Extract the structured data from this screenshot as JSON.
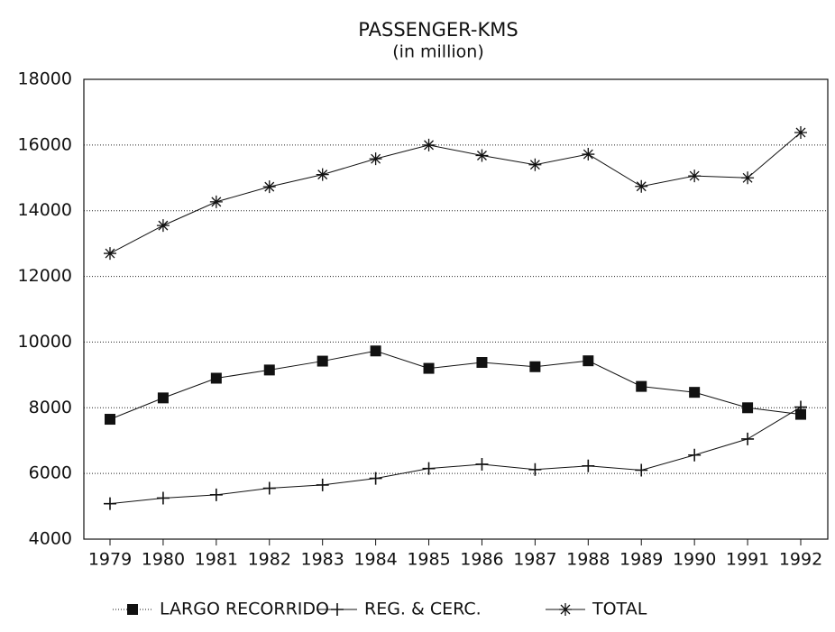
{
  "chart_data": {
    "type": "line",
    "title": "PASSENGER-KMS",
    "subtitle": "(in million)",
    "categories": [
      "1979",
      "1980",
      "1981",
      "1982",
      "1983",
      "1984",
      "1985",
      "1986",
      "1987",
      "1988",
      "1989",
      "1990",
      "1991",
      "1992"
    ],
    "series": [
      {
        "name": "LARGO RECORRIDO",
        "color": "#111111",
        "marker": "square",
        "values": [
          7650,
          8300,
          8900,
          9150,
          9420,
          9730,
          9200,
          9380,
          9250,
          9430,
          8650,
          8470,
          8000,
          7800
        ]
      },
      {
        "name": "REG. & CERC.",
        "color": "#111111",
        "marker": "plus",
        "values": [
          5080,
          5250,
          5350,
          5550,
          5650,
          5850,
          6150,
          6280,
          6120,
          6230,
          6100,
          6560,
          7050,
          8020
        ]
      },
      {
        "name": "TOTAL",
        "color": "#111111",
        "marker": "asterisk",
        "values": [
          12700,
          13550,
          14270,
          14730,
          15100,
          15580,
          16000,
          15680,
          15400,
          15720,
          14740,
          15060,
          15000,
          16380
        ]
      }
    ],
    "ylim": [
      4000,
      18000
    ],
    "yticks": [
      4000,
      6000,
      8000,
      10000,
      12000,
      14000,
      16000,
      18000
    ],
    "grid": true
  }
}
